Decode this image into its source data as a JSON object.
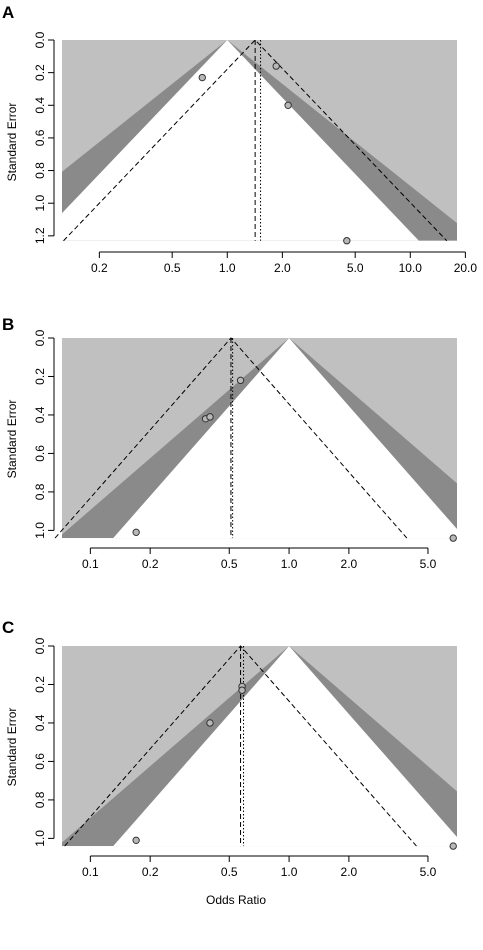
{
  "chart_data": [
    {
      "type": "scatter",
      "panel_label": "A",
      "xlabel": "",
      "ylabel": "Standard Error",
      "x_scale": "log",
      "x_ticks": [
        0.2,
        0.5,
        1.0,
        2.0,
        5.0,
        10.0,
        20.0
      ],
      "x_tick_labels": [
        "0.2",
        "0.5",
        "1.0",
        "2.0",
        "5.0",
        "10.0",
        "20.0"
      ],
      "y_ticks": [
        0.0,
        0.2,
        0.4,
        0.6,
        0.8,
        1.0,
        1.2
      ],
      "y_tick_labels": [
        "0.0",
        "0.2",
        "0.4",
        "0.6",
        "0.8",
        "1.0",
        "1.2"
      ],
      "xlim": [
        0.125,
        18
      ],
      "ylim": [
        1.25,
        0.0
      ],
      "y_reversed": true,
      "contour_center_or": 1.0,
      "contour_se_max": 1.23,
      "pooled_or": 1.42,
      "pooled_or_alt": 1.52,
      "funnel_line_center_or": 1.42,
      "funnel_line_top_se": 0.0,
      "se_bottom": 1.23,
      "points": [
        {
          "or": 0.73,
          "se": 0.23
        },
        {
          "or": 1.85,
          "se": 0.16
        },
        {
          "or": 2.15,
          "se": 0.4
        },
        {
          "or": 4.5,
          "se": 1.23
        }
      ]
    },
    {
      "type": "scatter",
      "panel_label": "B",
      "xlabel": "",
      "ylabel": "Standard Error",
      "x_scale": "log",
      "x_ticks": [
        0.1,
        0.2,
        0.5,
        1.0,
        2.0,
        5.0
      ],
      "x_tick_labels": [
        "0.1",
        "0.2",
        "0.5",
        "1.0",
        "2.0",
        "5.0"
      ],
      "y_ticks": [
        0.0,
        0.2,
        0.4,
        0.6,
        0.8,
        1.0
      ],
      "y_tick_labels": [
        "0.0",
        "0.2",
        "0.4",
        "0.6",
        "0.8",
        "1.0"
      ],
      "xlim": [
        0.072,
        7.0
      ],
      "ylim": [
        1.05,
        0.0
      ],
      "y_reversed": true,
      "contour_center_or": 1.0,
      "contour_se_max": 1.04,
      "pooled_or": 0.51,
      "pooled_or_alt": 0.52,
      "funnel_line_center_or": 0.51,
      "funnel_line_top_se": 0.0,
      "se_bottom": 1.04,
      "points": [
        {
          "or": 0.17,
          "se": 1.01
        },
        {
          "or": 0.38,
          "se": 0.42
        },
        {
          "or": 0.4,
          "se": 0.41
        },
        {
          "or": 0.57,
          "se": 0.22
        },
        {
          "or": 6.7,
          "se": 1.04
        }
      ]
    },
    {
      "type": "scatter",
      "panel_label": "C",
      "xlabel": "Odds Ratio",
      "ylabel": "Standard Error",
      "x_scale": "log",
      "x_ticks": [
        0.1,
        0.2,
        0.5,
        1.0,
        2.0,
        5.0
      ],
      "x_tick_labels": [
        "0.1",
        "0.2",
        "0.5",
        "1.0",
        "2.0",
        "5.0"
      ],
      "y_ticks": [
        0.0,
        0.2,
        0.4,
        0.6,
        0.8,
        1.0
      ],
      "y_tick_labels": [
        "0.0",
        "0.2",
        "0.4",
        "0.6",
        "0.8",
        "1.0"
      ],
      "xlim": [
        0.072,
        7.0
      ],
      "ylim": [
        1.05,
        0.0
      ],
      "y_reversed": true,
      "contour_center_or": 1.0,
      "contour_se_max": 1.04,
      "pooled_or": 0.57,
      "pooled_or_alt": 0.59,
      "funnel_line_center_or": 0.57,
      "funnel_line_top_se": 0.0,
      "se_bottom": 1.04,
      "points": [
        {
          "or": 0.17,
          "se": 1.01
        },
        {
          "or": 0.4,
          "se": 0.4
        },
        {
          "or": 0.58,
          "se": 0.21
        },
        {
          "or": 0.58,
          "se": 0.23
        },
        {
          "or": 6.7,
          "se": 1.04
        }
      ]
    }
  ],
  "colors": {
    "outer_region": "#c0c0c0",
    "middle_region": "#8a8a8a",
    "inner_region": "#ffffff",
    "point_fill": "#b8b8b8",
    "point_stroke": "#333333",
    "line": "#000000"
  }
}
